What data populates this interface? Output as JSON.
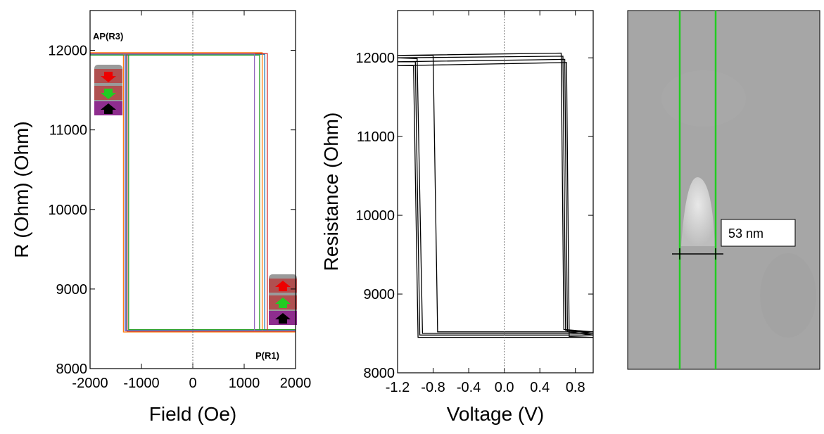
{
  "chart_data": [
    {
      "type": "line",
      "x_label": "Field (Oe)",
      "y_label": "R (Ohm) (Ohm)",
      "xlim": [
        -2000,
        2000
      ],
      "ylim": [
        8000,
        12500
      ],
      "xticks": [
        -2000,
        -1000,
        0,
        1000,
        2000
      ],
      "yticks": [
        8000,
        9000,
        10000,
        11000,
        12000
      ],
      "zero_line": true,
      "annotations": [
        "AP(R3)",
        "P(R1)"
      ],
      "series": [
        {
          "color": "#1f77b4",
          "x": [
            -2000,
            1400,
            1400,
            2000,
            -1300,
            -1300,
            -2000
          ],
          "values": [
            11950,
            11950,
            8480,
            8480,
            8480,
            11950,
            11950
          ]
        },
        {
          "color": "#ff7f0e",
          "x": [
            -2000,
            1350,
            1350,
            2000,
            -1350,
            -1350,
            -2000
          ],
          "values": [
            11970,
            11970,
            8460,
            8460,
            8460,
            11970,
            11970
          ]
        },
        {
          "color": "#2ca02c",
          "x": [
            -2000,
            1300,
            1300,
            2000,
            -1250,
            -1250,
            -2000
          ],
          "values": [
            11940,
            11940,
            8490,
            8490,
            8490,
            11940,
            11940
          ]
        },
        {
          "color": "#d62728",
          "x": [
            -2000,
            1450,
            1450,
            2000,
            -1280,
            -1280,
            -2000
          ],
          "values": [
            11960,
            11960,
            8470,
            8470,
            8470,
            11960,
            11960
          ]
        },
        {
          "color": "#9467bd",
          "x": [
            -2000,
            1200,
            1200,
            2000,
            -1320,
            -1320,
            -2000
          ],
          "values": [
            11955,
            11955,
            8475,
            8475,
            8475,
            11955,
            11955
          ]
        }
      ]
    },
    {
      "type": "line",
      "x_label": "Voltage (V)",
      "y_label": "Resistance (Ohm)",
      "xlim": [
        -1.2,
        1.0
      ],
      "ylim": [
        8000,
        12600
      ],
      "xticks": [
        -1.2,
        -0.8,
        -0.4,
        {
          "value": 0,
          "label": "0.0"
        },
        0.4,
        0.8
      ],
      "yticks": [
        8000,
        9000,
        10000,
        11000,
        12000
      ],
      "zero_line": true,
      "series": [
        {
          "color": "#000000",
          "x": [
            -1.2,
            0.68,
            0.71,
            1.0,
            -0.95,
            -1.0,
            -1.2
          ],
          "values": [
            11950,
            11980,
            8520,
            8480,
            8480,
            11950,
            11950
          ]
        },
        {
          "color": "#000000",
          "x": [
            -1.2,
            0.66,
            0.69,
            1.0,
            -0.92,
            -0.98,
            -1.2
          ],
          "values": [
            12000,
            12020,
            8540,
            8500,
            8500,
            11990,
            12000
          ]
        },
        {
          "color": "#000000",
          "x": [
            -1.2,
            0.7,
            0.73,
            1.0,
            -0.97,
            -1.02,
            -1.2
          ],
          "values": [
            11900,
            11940,
            8460,
            8450,
            8450,
            11900,
            11900
          ]
        },
        {
          "color": "#000000",
          "x": [
            -1.2,
            0.64,
            0.67,
            1.0,
            -0.75,
            -0.8,
            -1.2
          ],
          "values": [
            12030,
            12060,
            8550,
            8520,
            8520,
            12030,
            12030
          ]
        }
      ]
    }
  ],
  "sem_image": {
    "scale_label": "53 nm"
  }
}
